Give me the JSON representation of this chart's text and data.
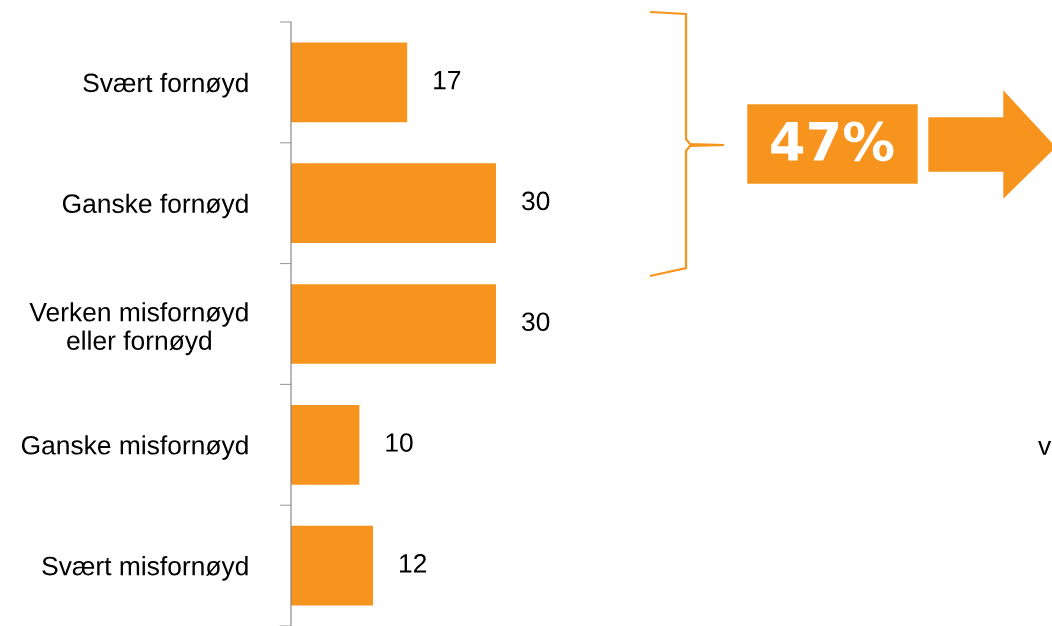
{
  "chart_data": {
    "type": "bar",
    "orientation": "horizontal",
    "categories": [
      "Svært fornøyd",
      "Ganske fornøyd",
      "Verken misfornøyd\neller fornøyd",
      "Ganske misfornøyd",
      "Svært misfornøyd"
    ],
    "values": [
      17,
      30,
      30,
      10,
      12
    ],
    "color": "#f7941d",
    "data_labels": true,
    "grid": false,
    "legend": false,
    "annotations": [
      "47%",
      "v"
    ]
  }
}
